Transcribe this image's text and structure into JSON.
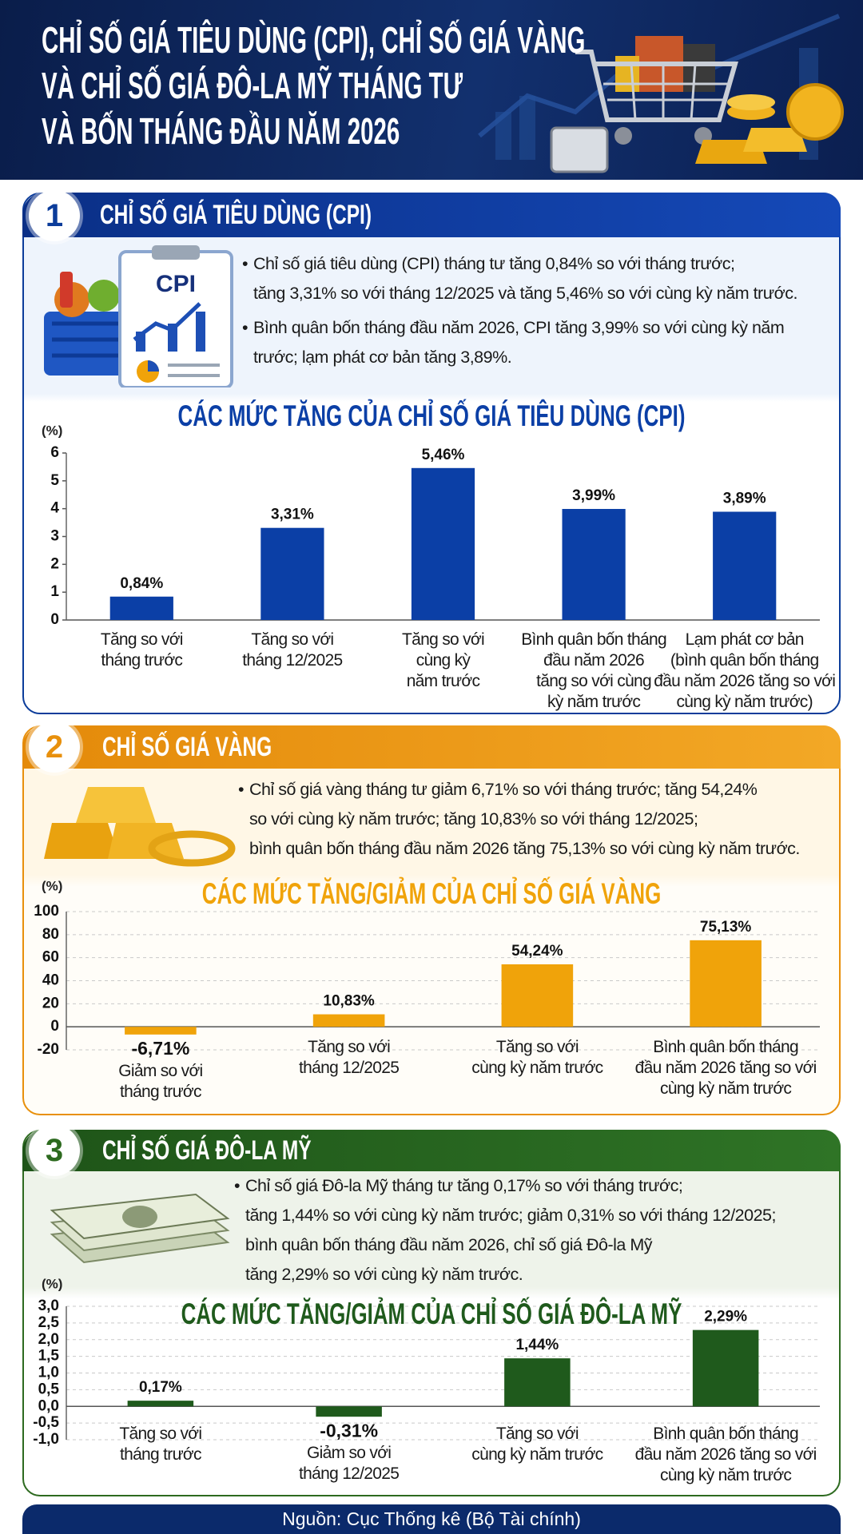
{
  "header": {
    "title": "CHỈ SỐ GIÁ TIÊU DÙNG (CPI), CHỈ SỐ GIÁ VÀNG\nVÀ CHỈ SỐ GIÁ ĐÔ-LA MỸ THÁNG TƯ\nVÀ BỐN THÁNG ĐẦU NĂM 2026"
  },
  "sections": [
    {
      "number": 1,
      "heading": "CHỈ SỐ GIÁ TIÊU DÙNG (CPI)",
      "icon_label": "CPI",
      "bullets": [
        "Chỉ số giá tiêu dùng (CPI) tháng tư tăng 0,84% so với tháng trước;\ntăng 3,31% so với tháng 12/2025 và tăng 5,46% so với cùng kỳ năm trước.",
        "Bình quân bốn tháng đầu năm 2026, CPI tăng 3,99% so với cùng kỳ năm\ntrước; lạm phát cơ bản tăng 3,89%."
      ]
    },
    {
      "number": 2,
      "heading": "CHỈ SỐ GIÁ VÀNG",
      "bullets": [
        "Chỉ số giá vàng tháng tư giảm 6,71% so với tháng trước; tăng 54,24%\nso với cùng kỳ năm trước; tăng 10,83% so với tháng 12/2025;\nbình quân bốn tháng đầu năm 2026 tăng 75,13% so với cùng kỳ năm trước."
      ]
    },
    {
      "number": 3,
      "heading": "CHỈ SỐ GIÁ ĐÔ-LA MỸ",
      "bullets": [
        "Chỉ số giá Đô-la Mỹ tháng tư tăng 0,17% so với tháng trước;\ntăng 1,44% so với cùng kỳ năm trước; giảm 0,31% so với tháng 12/2025;\nbình quân bốn tháng đầu năm 2026, chỉ số giá Đô-la Mỹ\ntăng 2,29% so với cùng kỳ năm trước."
      ]
    }
  ],
  "chart_data": [
    {
      "type": "bar",
      "title": "CÁC MỨC TĂNG CỦA CHỈ SỐ GIÁ TIÊU DÙNG (CPI)",
      "y_unit": "(%)",
      "categories": [
        "Tăng so với\ntháng trước",
        "Tăng so với\ntháng 12/2025",
        "Tăng so với\ncùng kỳ\nnăm trước",
        "Bình quân bốn tháng\nđầu năm 2026\ntăng so với cùng\nkỳ năm trước",
        "Lạm phát cơ bản\n(bình quân bốn tháng\nđầu năm 2026 tăng so với\ncùng kỳ năm trước)"
      ],
      "values": [
        0.84,
        3.31,
        5.46,
        3.99,
        3.89
      ],
      "value_labels": [
        "0,84%",
        "3,31%",
        "5,46%",
        "3,99%",
        "3,89%"
      ],
      "color": "#0b3fa6",
      "ylim": [
        0,
        6
      ],
      "yticks": [
        0,
        1,
        2,
        3,
        4,
        5,
        6
      ],
      "grid": false
    },
    {
      "type": "bar",
      "title": "CÁC MỨC TĂNG/GIẢM CỦA CHỈ SỐ GIÁ VÀNG",
      "y_unit": "(%)",
      "categories": [
        "Giảm so với\ntháng trước",
        "Tăng so với\ntháng 12/2025",
        "Tăng so với\ncùng kỳ năm trước",
        "Bình quân bốn tháng\nđầu năm 2026 tăng so với\ncùng kỳ năm trước"
      ],
      "values": [
        -6.71,
        10.83,
        54.24,
        75.13
      ],
      "value_labels": [
        "-6,71%",
        "10,83%",
        "54,24%",
        "75,13%"
      ],
      "color": "#f0a30a",
      "ylim": [
        -20,
        100
      ],
      "yticks": [
        -20,
        0,
        20,
        40,
        60,
        80,
        100
      ],
      "grid": true
    },
    {
      "type": "bar",
      "title": "CÁC MỨC TĂNG/GIẢM CỦA CHỈ SỐ GIÁ ĐÔ-LA MỸ",
      "y_unit": "(%)",
      "categories": [
        "Tăng so với\ntháng trước",
        "Giảm so với\ntháng 12/2025",
        "Tăng so với\ncùng kỳ năm trước",
        "Bình quân bốn tháng\nđầu năm 2026 tăng so với\ncùng kỳ năm trước"
      ],
      "values": [
        0.17,
        -0.31,
        1.44,
        2.29
      ],
      "value_labels": [
        "0,17%",
        "-0,31%",
        "1,44%",
        "2,29%"
      ],
      "color": "#1f5a1c",
      "ylim": [
        -1,
        3
      ],
      "yticks": [
        {
          "value": -1,
          "label": "-1,0"
        },
        {
          "value": -0.5,
          "label": "-0,5"
        },
        {
          "value": 0,
          "label": "0,0"
        },
        {
          "value": 0.5,
          "label": "0,5"
        },
        {
          "value": 1,
          "label": "1,0"
        },
        {
          "value": 1.5,
          "label": "1,5"
        },
        {
          "value": 2,
          "label": "2,0"
        },
        {
          "value": 2.5,
          "label": "2,5"
        },
        {
          "value": 3,
          "label": "3,0"
        }
      ],
      "grid": true
    }
  ],
  "source": "Nguồn: Cục Thống kê (Bộ Tài chính)"
}
